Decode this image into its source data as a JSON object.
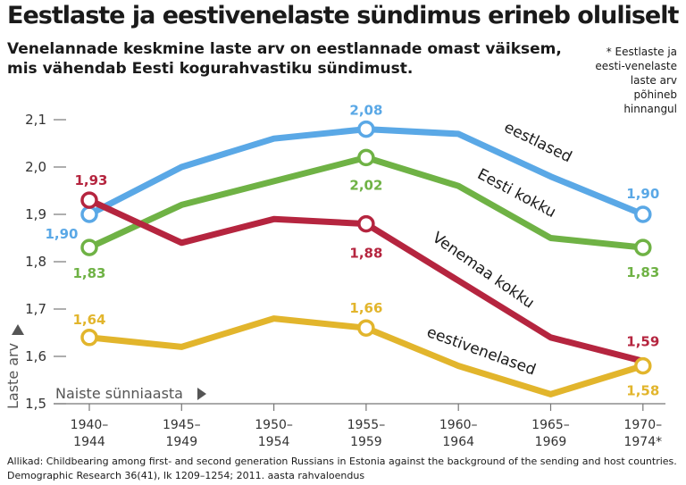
{
  "title": "Eestlaste ja eestivenelaste sündimus erineb oluliselt",
  "subtitle": "Venelannade keskmine laste arv on eestlannade omast väiksem, mis vähendab Eesti kogurahvastiku sündimust.",
  "note": "* Eestlaste ja eesti-venelaste laste arv põhineb hinnangul",
  "source": "Allikad: Childbearing among first- and second generation Russians in Estonia against the background of the sending and host countries. Demographic Research 36(41), lk 1209–1254; 2011. aasta rahvaloendus",
  "chart_data": {
    "type": "line",
    "ylabel": "Laste arv",
    "xlabel": "Naiste sünniaasta",
    "ylim": [
      1.5,
      2.1
    ],
    "yticks": [
      "1,5",
      "1,6",
      "1,7",
      "1,8",
      "1,9",
      "2,0",
      "2,1"
    ],
    "categories": [
      [
        "1940–",
        "1944"
      ],
      [
        "1945–",
        "1949"
      ],
      [
        "1950–",
        "1954"
      ],
      [
        "1955–",
        "1959"
      ],
      [
        "1960–",
        "1964"
      ],
      [
        "1965–",
        "1969"
      ],
      [
        "1970–",
        "1974*"
      ]
    ],
    "series": [
      {
        "name": "eestlased",
        "color": "#5aa8e6",
        "values": [
          1.9,
          2.0,
          2.06,
          2.08,
          2.07,
          1.98,
          1.9
        ],
        "markers": [
          0,
          3,
          6
        ],
        "labels": [
          {
            "i": 0,
            "text": "1,90"
          },
          {
            "i": 3,
            "text": "2,08"
          },
          {
            "i": 6,
            "text": "1,90"
          }
        ]
      },
      {
        "name": "Eesti kokku",
        "color": "#6fb245",
        "values": [
          1.83,
          1.92,
          1.97,
          2.02,
          1.96,
          1.85,
          1.83
        ],
        "markers": [
          0,
          3,
          6
        ],
        "labels": [
          {
            "i": 0,
            "text": "1,83"
          },
          {
            "i": 3,
            "text": "2,02"
          },
          {
            "i": 6,
            "text": "1,83"
          }
        ]
      },
      {
        "name": "Venemaa kokku",
        "color": "#b5253f",
        "values": [
          1.93,
          1.84,
          1.89,
          1.88,
          1.76,
          1.64,
          1.59
        ],
        "markers": [
          0,
          3
        ],
        "labels": [
          {
            "i": 0,
            "text": "1,93"
          },
          {
            "i": 3,
            "text": "1,88"
          },
          {
            "i": 6,
            "text": "1,59"
          }
        ]
      },
      {
        "name": "eestivenelased",
        "color": "#e2b52c",
        "values": [
          1.64,
          1.62,
          1.68,
          1.66,
          1.58,
          1.52,
          1.58
        ],
        "markers": [
          0,
          3,
          6
        ],
        "labels": [
          {
            "i": 0,
            "text": "1,64"
          },
          {
            "i": 3,
            "text": "1,66"
          },
          {
            "i": 6,
            "text": "1,58"
          }
        ]
      }
    ]
  }
}
